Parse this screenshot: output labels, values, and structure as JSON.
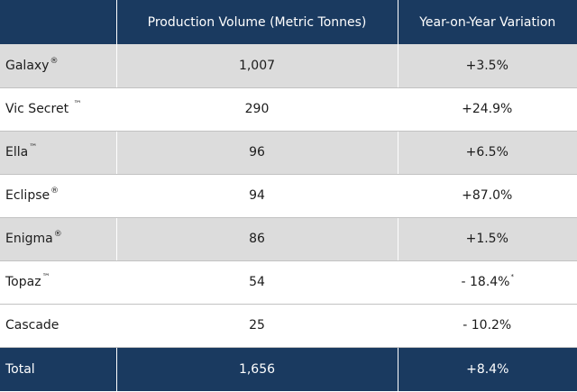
{
  "table": {
    "headers": [
      "",
      "Production Volume (Metric Tonnes)",
      "Year-on-Year Variation"
    ],
    "rows": [
      {
        "name": "Galaxy",
        "mark": "®",
        "volume": "1,007",
        "variation": "+3.5%",
        "note": ""
      },
      {
        "name": "Vic Secret ",
        "mark": "™",
        "volume": "290",
        "variation": "+24.9%",
        "note": ""
      },
      {
        "name": "Ella",
        "mark": "™",
        "volume": "96",
        "variation": "+6.5%",
        "note": ""
      },
      {
        "name": "Eclipse",
        "mark": "®",
        "volume": "94",
        "variation": "+87.0%",
        "note": ""
      },
      {
        "name": "Enigma",
        "mark": "®",
        "volume": "86",
        "variation": "+1.5%",
        "note": ""
      },
      {
        "name": "Topaz",
        "mark": "™",
        "volume": "54",
        "variation": "- 18.4%",
        "note": "*"
      },
      {
        "name": "Cascade",
        "mark": "",
        "volume": "25",
        "variation": "- 10.2%",
        "note": ""
      }
    ],
    "total": {
      "name": "Total",
      "volume": "1,656",
      "variation": "+8.4%"
    }
  },
  "colors": {
    "header_bg": "#1a3a60",
    "shaded_row": "#dcdcdc",
    "plain_row": "#ffffff"
  }
}
